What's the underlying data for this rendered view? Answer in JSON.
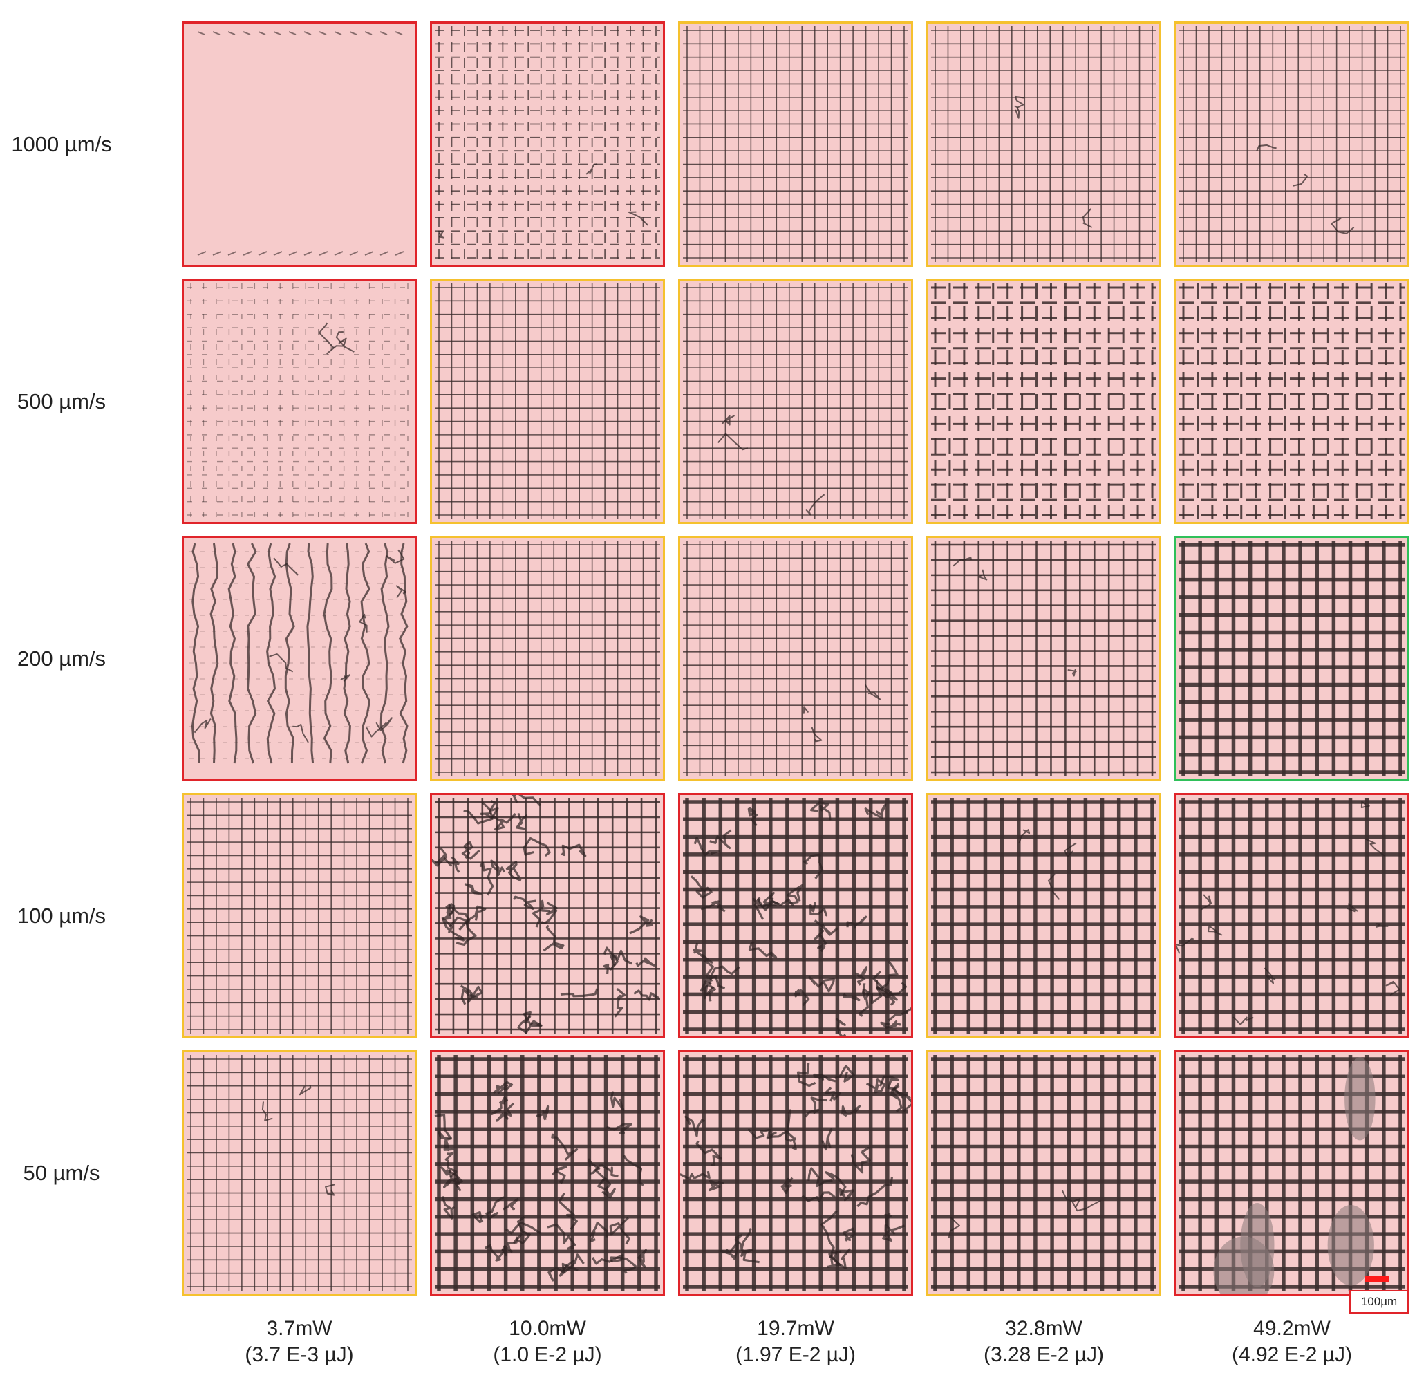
{
  "figure": {
    "rows": [
      {
        "label": "1000 µm/s",
        "tiles": [
          {
            "quality": "fail",
            "grid": "sparse-edges",
            "debris": "none"
          },
          {
            "quality": "fail",
            "grid": "wavy-fine",
            "debris": "low"
          },
          {
            "quality": "partial",
            "grid": "fine",
            "debris": "none"
          },
          {
            "quality": "partial",
            "grid": "fine",
            "debris": "low"
          },
          {
            "quality": "partial",
            "grid": "fine",
            "debris": "low"
          }
        ]
      },
      {
        "label": "500 µm/s",
        "tiles": [
          {
            "quality": "fail",
            "grid": "dashed-faint",
            "debris": "low"
          },
          {
            "quality": "partial",
            "grid": "fine",
            "debris": "none"
          },
          {
            "quality": "partial",
            "grid": "fine",
            "debris": "low"
          },
          {
            "quality": "partial",
            "grid": "medium-dashed",
            "debris": "none"
          },
          {
            "quality": "partial",
            "grid": "medium-dashed",
            "debris": "none"
          }
        ]
      },
      {
        "label": "200 µm/s",
        "tiles": [
          {
            "quality": "fail",
            "grid": "wavy-vertical",
            "debris": "medium"
          },
          {
            "quality": "partial",
            "grid": "fine",
            "debris": "none"
          },
          {
            "quality": "partial",
            "grid": "fine",
            "debris": "low"
          },
          {
            "quality": "partial",
            "grid": "medium",
            "debris": "low"
          },
          {
            "quality": "good",
            "grid": "thick",
            "debris": "none"
          }
        ]
      },
      {
        "label": "100 µm/s",
        "tiles": [
          {
            "quality": "partial",
            "grid": "fine",
            "debris": "none"
          },
          {
            "quality": "fail",
            "grid": "medium",
            "debris": "high"
          },
          {
            "quality": "fail",
            "grid": "thick",
            "debris": "high"
          },
          {
            "quality": "partial",
            "grid": "thick",
            "debris": "low"
          },
          {
            "quality": "fail",
            "grid": "thick",
            "debris": "medium"
          }
        ]
      },
      {
        "label": "50 µm/s",
        "tiles": [
          {
            "quality": "partial",
            "grid": "fine",
            "debris": "low"
          },
          {
            "quality": "fail",
            "grid": "thick",
            "debris": "high"
          },
          {
            "quality": "fail",
            "grid": "thick",
            "debris": "high"
          },
          {
            "quality": "partial",
            "grid": "thick",
            "debris": "low"
          },
          {
            "quality": "fail",
            "grid": "thick",
            "debris": "blobs"
          }
        ]
      }
    ],
    "columns": [
      {
        "power": "3.7mW",
        "energy": "(3.7 E-3 µJ)"
      },
      {
        "power": "10.0mW",
        "energy": "(1.0 E-2 µJ)"
      },
      {
        "power": "19.7mW",
        "energy": "(1.97 E-2 µJ)"
      },
      {
        "power": "32.8mW",
        "energy": "(3.28 E-2 µJ)"
      },
      {
        "power": "49.2mW",
        "energy": "(4.92 E-2 µJ)"
      }
    ],
    "scale_bar": {
      "label": "100µm",
      "color": "#ff1a1a"
    },
    "colors": {
      "fail": "#e0242a",
      "partial": "#f5c12e",
      "good": "#2fc05a",
      "tile_background": "#f6cbcb",
      "grid_line": "#3a2c2c"
    }
  }
}
